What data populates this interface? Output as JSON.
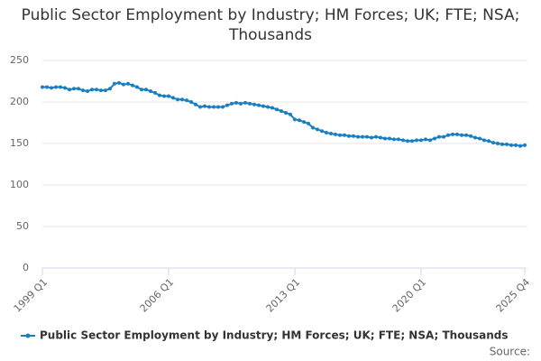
{
  "chart_data": {
    "type": "line",
    "title": "Public Sector Employment by Industry; HM Forces; UK; FTE; NSA; Thousands",
    "source": "Source:",
    "categories": [
      "1999 Q1",
      null,
      null,
      null,
      null,
      null,
      null,
      null,
      null,
      null,
      null,
      null,
      null,
      null,
      null,
      null,
      null,
      null,
      null,
      null,
      null,
      null,
      null,
      null,
      null,
      null,
      null,
      null,
      "2006 Q1",
      null,
      null,
      null,
      null,
      null,
      null,
      null,
      null,
      null,
      null,
      null,
      null,
      null,
      null,
      null,
      null,
      null,
      null,
      null,
      null,
      null,
      null,
      null,
      null,
      null,
      null,
      null,
      "2013 Q1",
      null,
      null,
      null,
      null,
      null,
      null,
      null,
      null,
      null,
      null,
      null,
      null,
      null,
      null,
      null,
      null,
      null,
      null,
      null,
      null,
      null,
      null,
      null,
      null,
      null,
      null,
      null,
      "2020 Q1",
      null,
      null,
      null,
      null,
      null,
      null,
      null,
      null,
      null,
      null,
      null,
      null,
      null,
      null,
      null,
      null,
      null,
      null,
      null,
      null,
      null,
      null,
      "2025 Q4"
    ],
    "series": [
      {
        "name": "Public Sector Employment by Industry; HM Forces; UK; FTE; NSA; Thousands",
        "color": "#1a7fc1",
        "values": [
          218,
          218,
          217,
          218,
          218,
          217,
          215,
          216,
          216,
          214,
          213,
          215,
          215,
          214,
          214,
          216,
          222,
          223,
          221,
          222,
          220,
          218,
          215,
          215,
          213,
          211,
          208,
          207,
          207,
          205,
          203,
          203,
          202,
          200,
          197,
          194,
          195,
          194,
          194,
          194,
          194,
          196,
          198,
          199,
          198,
          199,
          198,
          197,
          196,
          195,
          194,
          193,
          191,
          189,
          187,
          185,
          179,
          178,
          176,
          174,
          169,
          167,
          165,
          163,
          162,
          161,
          160,
          160,
          159,
          159,
          158,
          158,
          158,
          157,
          158,
          157,
          156,
          156,
          155,
          155,
          154,
          153,
          153,
          154,
          154,
          155,
          154,
          156,
          158,
          158,
          160,
          161,
          161,
          160,
          160,
          159,
          157,
          156,
          154,
          153,
          151,
          150,
          149,
          149,
          148,
          148,
          147,
          148
        ]
      }
    ],
    "ylim": [
      0,
      250
    ],
    "yticks": [
      0,
      50,
      100,
      150,
      200,
      250
    ],
    "grid": true,
    "legend": "bottom"
  }
}
